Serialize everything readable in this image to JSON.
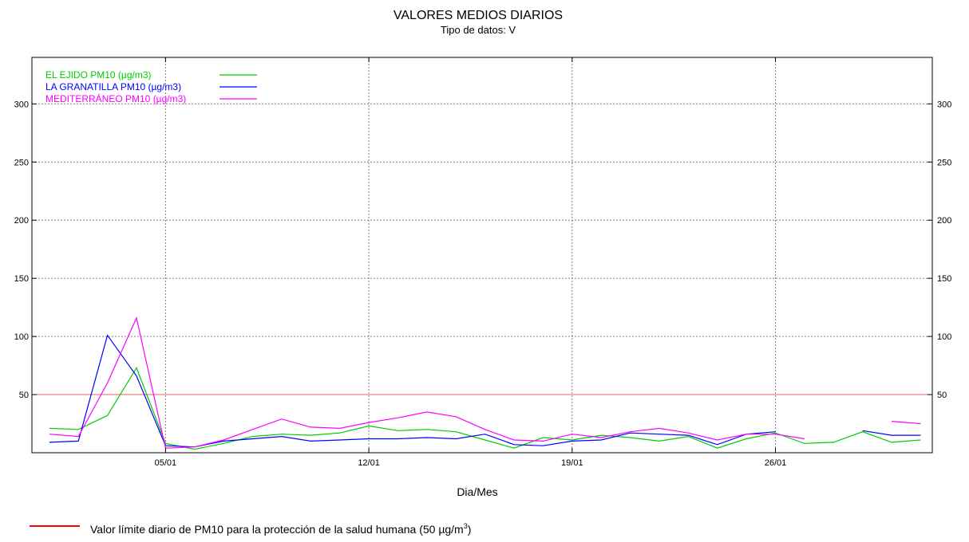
{
  "chart_data": {
    "type": "line",
    "title": "VALORES MEDIOS DIARIOS",
    "subtitle": "Tipo de datos: V",
    "xlabel": "Dia/Mes",
    "ylabel": "",
    "ylim": [
      0,
      340
    ],
    "xlim": [
      1,
      31
    ],
    "x_ticks": [
      {
        "day": 5,
        "label": "05/01"
      },
      {
        "day": 12,
        "label": "12/01"
      },
      {
        "day": 19,
        "label": "19/01"
      },
      {
        "day": 26,
        "label": "26/01"
      }
    ],
    "y_ticks": [
      50,
      100,
      150,
      200,
      250,
      300
    ],
    "y_tick_labels": [
      "50",
      "100",
      "150",
      "200",
      "250",
      "300"
    ],
    "grid": true,
    "legend_position": "top-left",
    "limit_line": {
      "value": 50,
      "color": "#e0606a"
    },
    "series": [
      {
        "name": "EL EJIDO PM10 (µg/m3)",
        "color": "#00cc00",
        "x": [
          1,
          2,
          3,
          4,
          5,
          6,
          7,
          8,
          9,
          10,
          11,
          12,
          13,
          14,
          15,
          16,
          17,
          18,
          19,
          20,
          21,
          22,
          23,
          24,
          25,
          26,
          27,
          28,
          29,
          30,
          31
        ],
        "y": [
          21,
          20,
          32,
          73,
          8,
          3,
          8,
          14,
          16,
          15,
          17,
          23,
          19,
          20,
          18,
          11,
          4,
          13,
          11,
          15,
          13,
          10,
          14,
          4,
          12,
          17,
          8,
          9,
          18,
          9,
          11
        ]
      },
      {
        "name": "LA GRANATILLA PM10 (µg/m3)",
        "color": "#0000ff",
        "x": [
          1,
          2,
          3,
          4,
          5,
          6,
          7,
          8,
          9,
          10,
          11,
          12,
          13,
          14,
          15,
          16,
          17,
          18,
          19,
          20,
          21,
          22,
          23,
          24,
          25,
          26,
          29,
          30,
          31
        ],
        "y": [
          9,
          10,
          101,
          66,
          6,
          5,
          10,
          12,
          14,
          10,
          11,
          12,
          12,
          13,
          12,
          16,
          7,
          6,
          10,
          11,
          17,
          16,
          15,
          7,
          16,
          18,
          19,
          15,
          15
        ]
      },
      {
        "name": "MEDITERRÁNEO PM10 (µg/m3)",
        "color": "#ff00ff",
        "x": [
          1,
          2,
          3,
          4,
          5,
          6,
          7,
          8,
          9,
          10,
          11,
          12,
          13,
          14,
          15,
          16,
          17,
          18,
          19,
          20,
          21,
          22,
          23,
          24,
          25,
          26,
          27,
          30,
          31
        ],
        "y": [
          16,
          14,
          60,
          116,
          4,
          5,
          11,
          20,
          29,
          22,
          21,
          26,
          30,
          35,
          31,
          20,
          11,
          10,
          16,
          13,
          18,
          21,
          17,
          11,
          16,
          16,
          12,
          27,
          25
        ]
      }
    ],
    "footer": {
      "line_color": "#ff0000",
      "text": "Valor límite diario de PM10  para la protección de la salud humana (50 µg/m",
      "superscript": "3",
      "text_end": ")"
    }
  }
}
